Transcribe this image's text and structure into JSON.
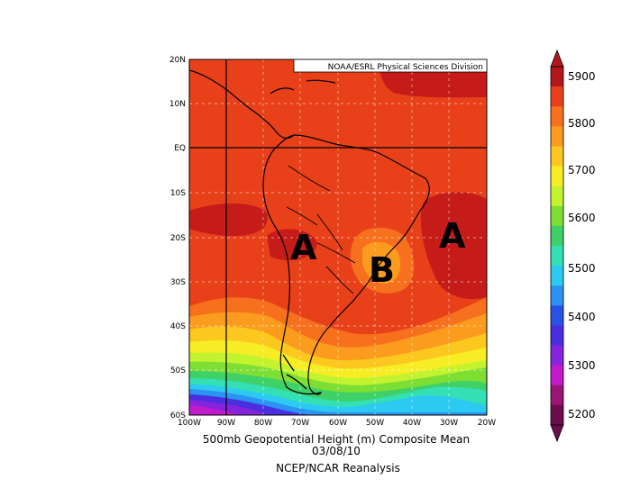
{
  "credit": "NOAA/ESRL Physical Sciences Division",
  "caption": {
    "line1": "500mb Geopotential Height (m) Composite Mean",
    "line2": "03/08/10",
    "line3": "NCEP/NCAR Reanalysis"
  },
  "axes": {
    "lon_labels": [
      "100W",
      "90W",
      "80W",
      "70W",
      "60W",
      "50W",
      "40W",
      "30W",
      "20W"
    ],
    "lat_labels": [
      "20N",
      "10N",
      "EQ",
      "10S",
      "20S",
      "30S",
      "40S",
      "50S",
      "60S"
    ]
  },
  "annotations": {
    "high_west": "A",
    "low_center": "B",
    "high_east": "A"
  },
  "colorbar": {
    "labels": [
      "5900",
      "5800",
      "5700",
      "5600",
      "5500",
      "5400",
      "5300",
      "5200"
    ],
    "colors": [
      "#b4171b",
      "#e8411a",
      "#f7701d",
      "#fb9c1e",
      "#fcc71e",
      "#f7ed24",
      "#c3f22f",
      "#7dde34",
      "#3fd068",
      "#34e0b3",
      "#2ccaf0",
      "#2b93f2",
      "#2a52e6",
      "#4a2ee0",
      "#8523dd",
      "#c21bcb",
      "#9a1574",
      "#6c0d4e"
    ]
  }
}
